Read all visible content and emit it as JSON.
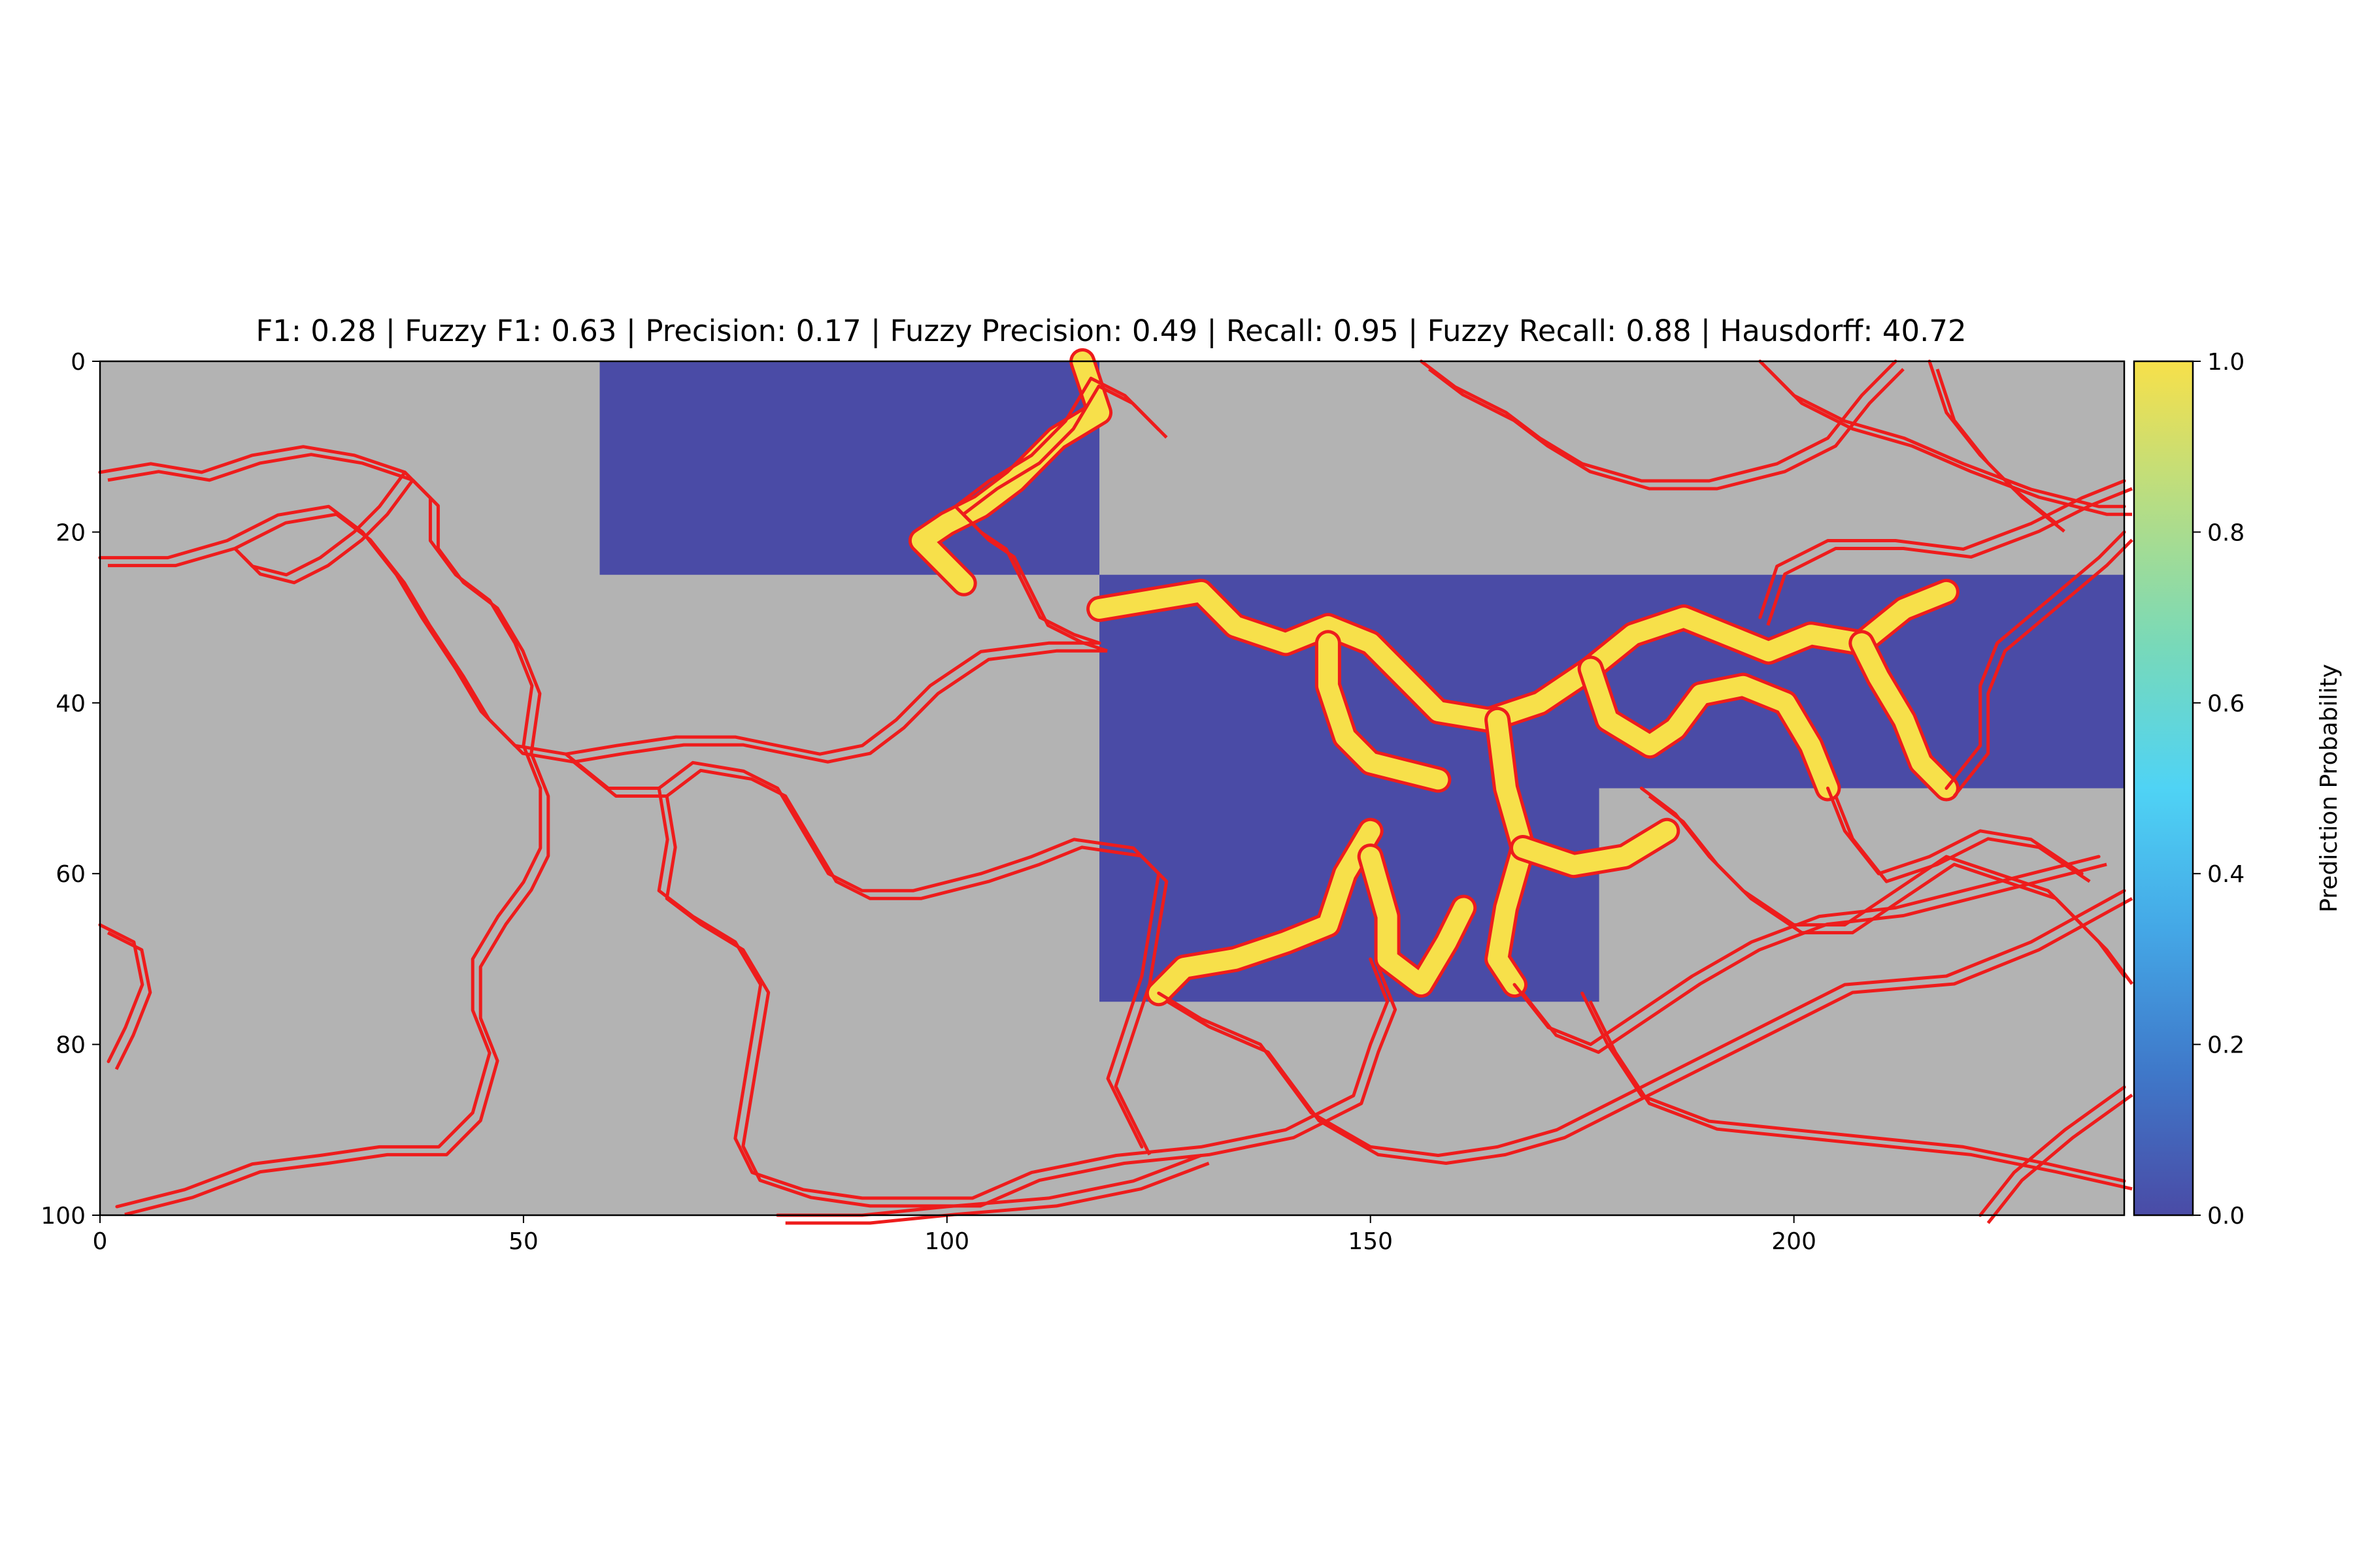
{
  "chart_data": {
    "type": "heatmap",
    "title": "F1: 0.28 | Fuzzy F1: 0.63 | Precision: 0.17 | Fuzzy Precision: 0.49 | Recall: 0.95 | Fuzzy Recall: 0.88 | Hausdorff: 40.72",
    "xlabel": "",
    "ylabel": "",
    "xlim": [
      0,
      239
    ],
    "ylim": [
      100,
      0
    ],
    "xticks": [
      0,
      50,
      100,
      150,
      200
    ],
    "yticks": [
      0,
      20,
      40,
      60,
      80,
      100
    ],
    "background_color": "#b3b3b3",
    "contour_color": "#ee1c1c",
    "prediction_regions": [
      {
        "x": [
          59,
          118
        ],
        "y": [
          0,
          25
        ],
        "value": 0.0
      },
      {
        "x": [
          118,
          239
        ],
        "y": [
          25,
          50
        ],
        "value": 0.0
      },
      {
        "x": [
          118,
          177
        ],
        "y": [
          50,
          75
        ],
        "value": 0.0
      }
    ],
    "colorbar": {
      "label": "Prediction Probability",
      "range": [
        0.0,
        1.0
      ],
      "ticks": [
        "0.0",
        "0.2",
        "0.4",
        "0.6",
        "0.8",
        "1.0"
      ],
      "colors": [
        "#4a4ba6",
        "#3f78c9",
        "#44a7e6",
        "#4fd3f5",
        "#78d9b9",
        "#b6dd84",
        "#f7e04a"
      ]
    },
    "high_probability_paths": [
      [
        [
          116,
          0
        ],
        [
          118,
          6
        ],
        [
          113,
          9
        ],
        [
          108,
          14
        ],
        [
          104,
          17
        ],
        [
          100,
          19
        ],
        [
          97,
          21
        ],
        [
          100,
          24
        ],
        [
          102,
          26
        ]
      ],
      [
        [
          118,
          29
        ],
        [
          124,
          28
        ],
        [
          130,
          27
        ],
        [
          134,
          31
        ],
        [
          140,
          33
        ],
        [
          145,
          31
        ],
        [
          150,
          33
        ],
        [
          154,
          37
        ],
        [
          158,
          41
        ],
        [
          164,
          42
        ],
        [
          170,
          40
        ],
        [
          176,
          36
        ],
        [
          181,
          32
        ],
        [
          187,
          30
        ],
        [
          192,
          32
        ],
        [
          197,
          34
        ],
        [
          202,
          32
        ],
        [
          208,
          33
        ],
        [
          213,
          29
        ],
        [
          218,
          27
        ]
      ],
      [
        [
          145,
          33
        ],
        [
          145,
          38
        ],
        [
          147,
          44
        ],
        [
          150,
          47
        ],
        [
          154,
          48
        ],
        [
          158,
          49
        ]
      ],
      [
        [
          176,
          36
        ],
        [
          178,
          42
        ],
        [
          183,
          45
        ],
        [
          186,
          43
        ],
        [
          189,
          39
        ],
        [
          194,
          38
        ],
        [
          199,
          40
        ],
        [
          202,
          45
        ],
        [
          204,
          50
        ]
      ],
      [
        [
          208,
          33
        ],
        [
          210,
          37
        ],
        [
          213,
          42
        ],
        [
          215,
          47
        ],
        [
          218,
          50
        ]
      ],
      [
        [
          165,
          42
        ],
        [
          166,
          50
        ],
        [
          168,
          57
        ],
        [
          166,
          64
        ],
        [
          165,
          70
        ],
        [
          167,
          73
        ]
      ],
      [
        [
          168,
          57
        ],
        [
          174,
          59
        ],
        [
          180,
          58
        ],
        [
          185,
          55
        ]
      ],
      [
        [
          150,
          55
        ],
        [
          147,
          60
        ],
        [
          145,
          66
        ],
        [
          140,
          68
        ],
        [
          134,
          70
        ],
        [
          128,
          71
        ],
        [
          125,
          74
        ]
      ],
      [
        [
          150,
          58
        ],
        [
          152,
          65
        ],
        [
          152,
          70
        ],
        [
          156,
          73
        ],
        [
          159,
          68
        ],
        [
          161,
          64
        ]
      ]
    ],
    "contour_paths": [
      [
        [
          0,
          13
        ],
        [
          6,
          12
        ],
        [
          12,
          13
        ],
        [
          18,
          11
        ],
        [
          24,
          10
        ],
        [
          30,
          11
        ],
        [
          36,
          13
        ],
        [
          39,
          16
        ],
        [
          39,
          21
        ],
        [
          42,
          25
        ],
        [
          46,
          28
        ],
        [
          49,
          33
        ],
        [
          51,
          38
        ],
        [
          50,
          45
        ],
        [
          52,
          50
        ],
        [
          52,
          57
        ],
        [
          50,
          61
        ],
        [
          47,
          65
        ],
        [
          44,
          70
        ],
        [
          44,
          76
        ],
        [
          46,
          81
        ],
        [
          44,
          88
        ],
        [
          40,
          92
        ],
        [
          33,
          92
        ],
        [
          26,
          93
        ],
        [
          18,
          94
        ],
        [
          10,
          97
        ],
        [
          2,
          99
        ]
      ],
      [
        [
          0,
          23
        ],
        [
          8,
          23
        ],
        [
          15,
          21
        ],
        [
          21,
          18
        ],
        [
          27,
          17
        ],
        [
          31,
          20
        ],
        [
          35,
          25
        ],
        [
          38,
          30
        ],
        [
          42,
          36
        ],
        [
          45,
          41
        ],
        [
          49,
          45
        ],
        [
          55,
          46
        ],
        [
          61,
          45
        ],
        [
          68,
          44
        ],
        [
          75,
          44
        ],
        [
          80,
          45
        ],
        [
          85,
          46
        ],
        [
          90,
          45
        ],
        [
          94,
          42
        ],
        [
          98,
          38
        ],
        [
          104,
          34
        ],
        [
          112,
          33
        ],
        [
          118,
          33
        ]
      ],
      [
        [
          55,
          46
        ],
        [
          60,
          50
        ],
        [
          66,
          50
        ],
        [
          70,
          47
        ],
        [
          76,
          48
        ],
        [
          80,
          50
        ],
        [
          83,
          55
        ],
        [
          86,
          60
        ],
        [
          90,
          62
        ],
        [
          96,
          62
        ],
        [
          104,
          60
        ],
        [
          110,
          58
        ],
        [
          115,
          56
        ],
        [
          122,
          57
        ],
        [
          125,
          60
        ],
        [
          124,
          66
        ],
        [
          123,
          72
        ],
        [
          121,
          78
        ],
        [
          119,
          84
        ],
        [
          121,
          88
        ],
        [
          123,
          92
        ]
      ],
      [
        [
          66,
          50
        ],
        [
          67,
          56
        ],
        [
          66,
          62
        ],
        [
          70,
          65
        ],
        [
          75,
          68
        ],
        [
          78,
          73
        ],
        [
          77,
          79
        ],
        [
          76,
          85
        ],
        [
          75,
          91
        ],
        [
          77,
          95
        ],
        [
          83,
          97
        ],
        [
          90,
          98
        ],
        [
          97,
          98
        ],
        [
          103,
          98
        ],
        [
          110,
          95
        ],
        [
          120,
          93
        ],
        [
          130,
          92
        ],
        [
          140,
          90
        ],
        [
          148,
          86
        ],
        [
          150,
          80
        ],
        [
          152,
          75
        ],
        [
          150,
          70
        ]
      ],
      [
        [
          118,
          33
        ],
        [
          115,
          32
        ],
        [
          111,
          30
        ],
        [
          109,
          26
        ],
        [
          107,
          22
        ],
        [
          104,
          20
        ],
        [
          101,
          17
        ],
        [
          105,
          14
        ],
        [
          110,
          11
        ],
        [
          114,
          7
        ],
        [
          117,
          2
        ],
        [
          121,
          4
        ],
        [
          125,
          8
        ]
      ],
      [
        [
          36,
          13
        ],
        [
          33,
          17
        ],
        [
          30,
          20
        ],
        [
          26,
          23
        ],
        [
          22,
          25
        ],
        [
          18,
          24
        ],
        [
          16,
          22
        ]
      ],
      [
        [
          0,
          66
        ],
        [
          4,
          68
        ],
        [
          5,
          73
        ],
        [
          3,
          78
        ],
        [
          1,
          82
        ]
      ],
      [
        [
          125,
          74
        ],
        [
          130,
          77
        ],
        [
          137,
          80
        ],
        [
          140,
          84
        ],
        [
          143,
          88
        ],
        [
          150,
          92
        ],
        [
          158,
          93
        ],
        [
          165,
          92
        ],
        [
          172,
          90
        ],
        [
          178,
          87
        ],
        [
          186,
          83
        ],
        [
          196,
          78
        ],
        [
          206,
          73
        ],
        [
          218,
          72
        ],
        [
          228,
          68
        ],
        [
          239,
          62
        ]
      ],
      [
        [
          175,
          74
        ],
        [
          178,
          80
        ],
        [
          182,
          86
        ],
        [
          190,
          89
        ],
        [
          200,
          90
        ],
        [
          210,
          91
        ],
        [
          220,
          92
        ],
        [
          230,
          94
        ],
        [
          239,
          96
        ]
      ],
      [
        [
          167,
          73
        ],
        [
          171,
          78
        ],
        [
          176,
          80
        ],
        [
          182,
          76
        ],
        [
          188,
          72
        ],
        [
          195,
          68
        ],
        [
          203,
          65
        ],
        [
          212,
          64
        ],
        [
          220,
          62
        ],
        [
          228,
          60
        ],
        [
          236,
          58
        ]
      ],
      [
        [
          182,
          50
        ],
        [
          186,
          53
        ],
        [
          190,
          58
        ],
        [
          194,
          62
        ],
        [
          200,
          66
        ],
        [
          206,
          66
        ],
        [
          212,
          62
        ],
        [
          218,
          58
        ],
        [
          224,
          60
        ],
        [
          230,
          62
        ],
        [
          236,
          68
        ],
        [
          239,
          72
        ]
      ],
      [
        [
          204,
          50
        ],
        [
          206,
          55
        ],
        [
          210,
          60
        ],
        [
          216,
          58
        ],
        [
          222,
          55
        ],
        [
          228,
          56
        ],
        [
          234,
          60
        ]
      ],
      [
        [
          218,
          50
        ],
        [
          222,
          45
        ],
        [
          222,
          38
        ],
        [
          224,
          33
        ],
        [
          230,
          28
        ],
        [
          236,
          23
        ],
        [
          239,
          20
        ]
      ],
      [
        [
          196,
          30
        ],
        [
          198,
          24
        ],
        [
          204,
          21
        ],
        [
          212,
          21
        ],
        [
          220,
          22
        ],
        [
          228,
          19
        ],
        [
          234,
          16
        ],
        [
          239,
          14
        ]
      ],
      [
        [
          156,
          0
        ],
        [
          160,
          3
        ],
        [
          166,
          6
        ],
        [
          170,
          9
        ],
        [
          175,
          12
        ],
        [
          182,
          14
        ],
        [
          190,
          14
        ],
        [
          198,
          12
        ],
        [
          204,
          9
        ],
        [
          208,
          4
        ],
        [
          212,
          0
        ]
      ],
      [
        [
          196,
          0
        ],
        [
          200,
          4
        ],
        [
          206,
          7
        ],
        [
          213,
          9
        ],
        [
          220,
          12
        ],
        [
          228,
          15
        ],
        [
          236,
          17
        ],
        [
          239,
          17
        ]
      ],
      [
        [
          216,
          0
        ],
        [
          218,
          6
        ],
        [
          222,
          11
        ],
        [
          226,
          15
        ],
        [
          231,
          19
        ]
      ],
      [
        [
          130,
          93
        ],
        [
          122,
          96
        ],
        [
          112,
          98
        ],
        [
          100,
          99
        ],
        [
          90,
          100
        ],
        [
          80,
          100
        ]
      ],
      [
        [
          239,
          85
        ],
        [
          232,
          90
        ],
        [
          226,
          95
        ],
        [
          222,
          100
        ]
      ]
    ]
  }
}
